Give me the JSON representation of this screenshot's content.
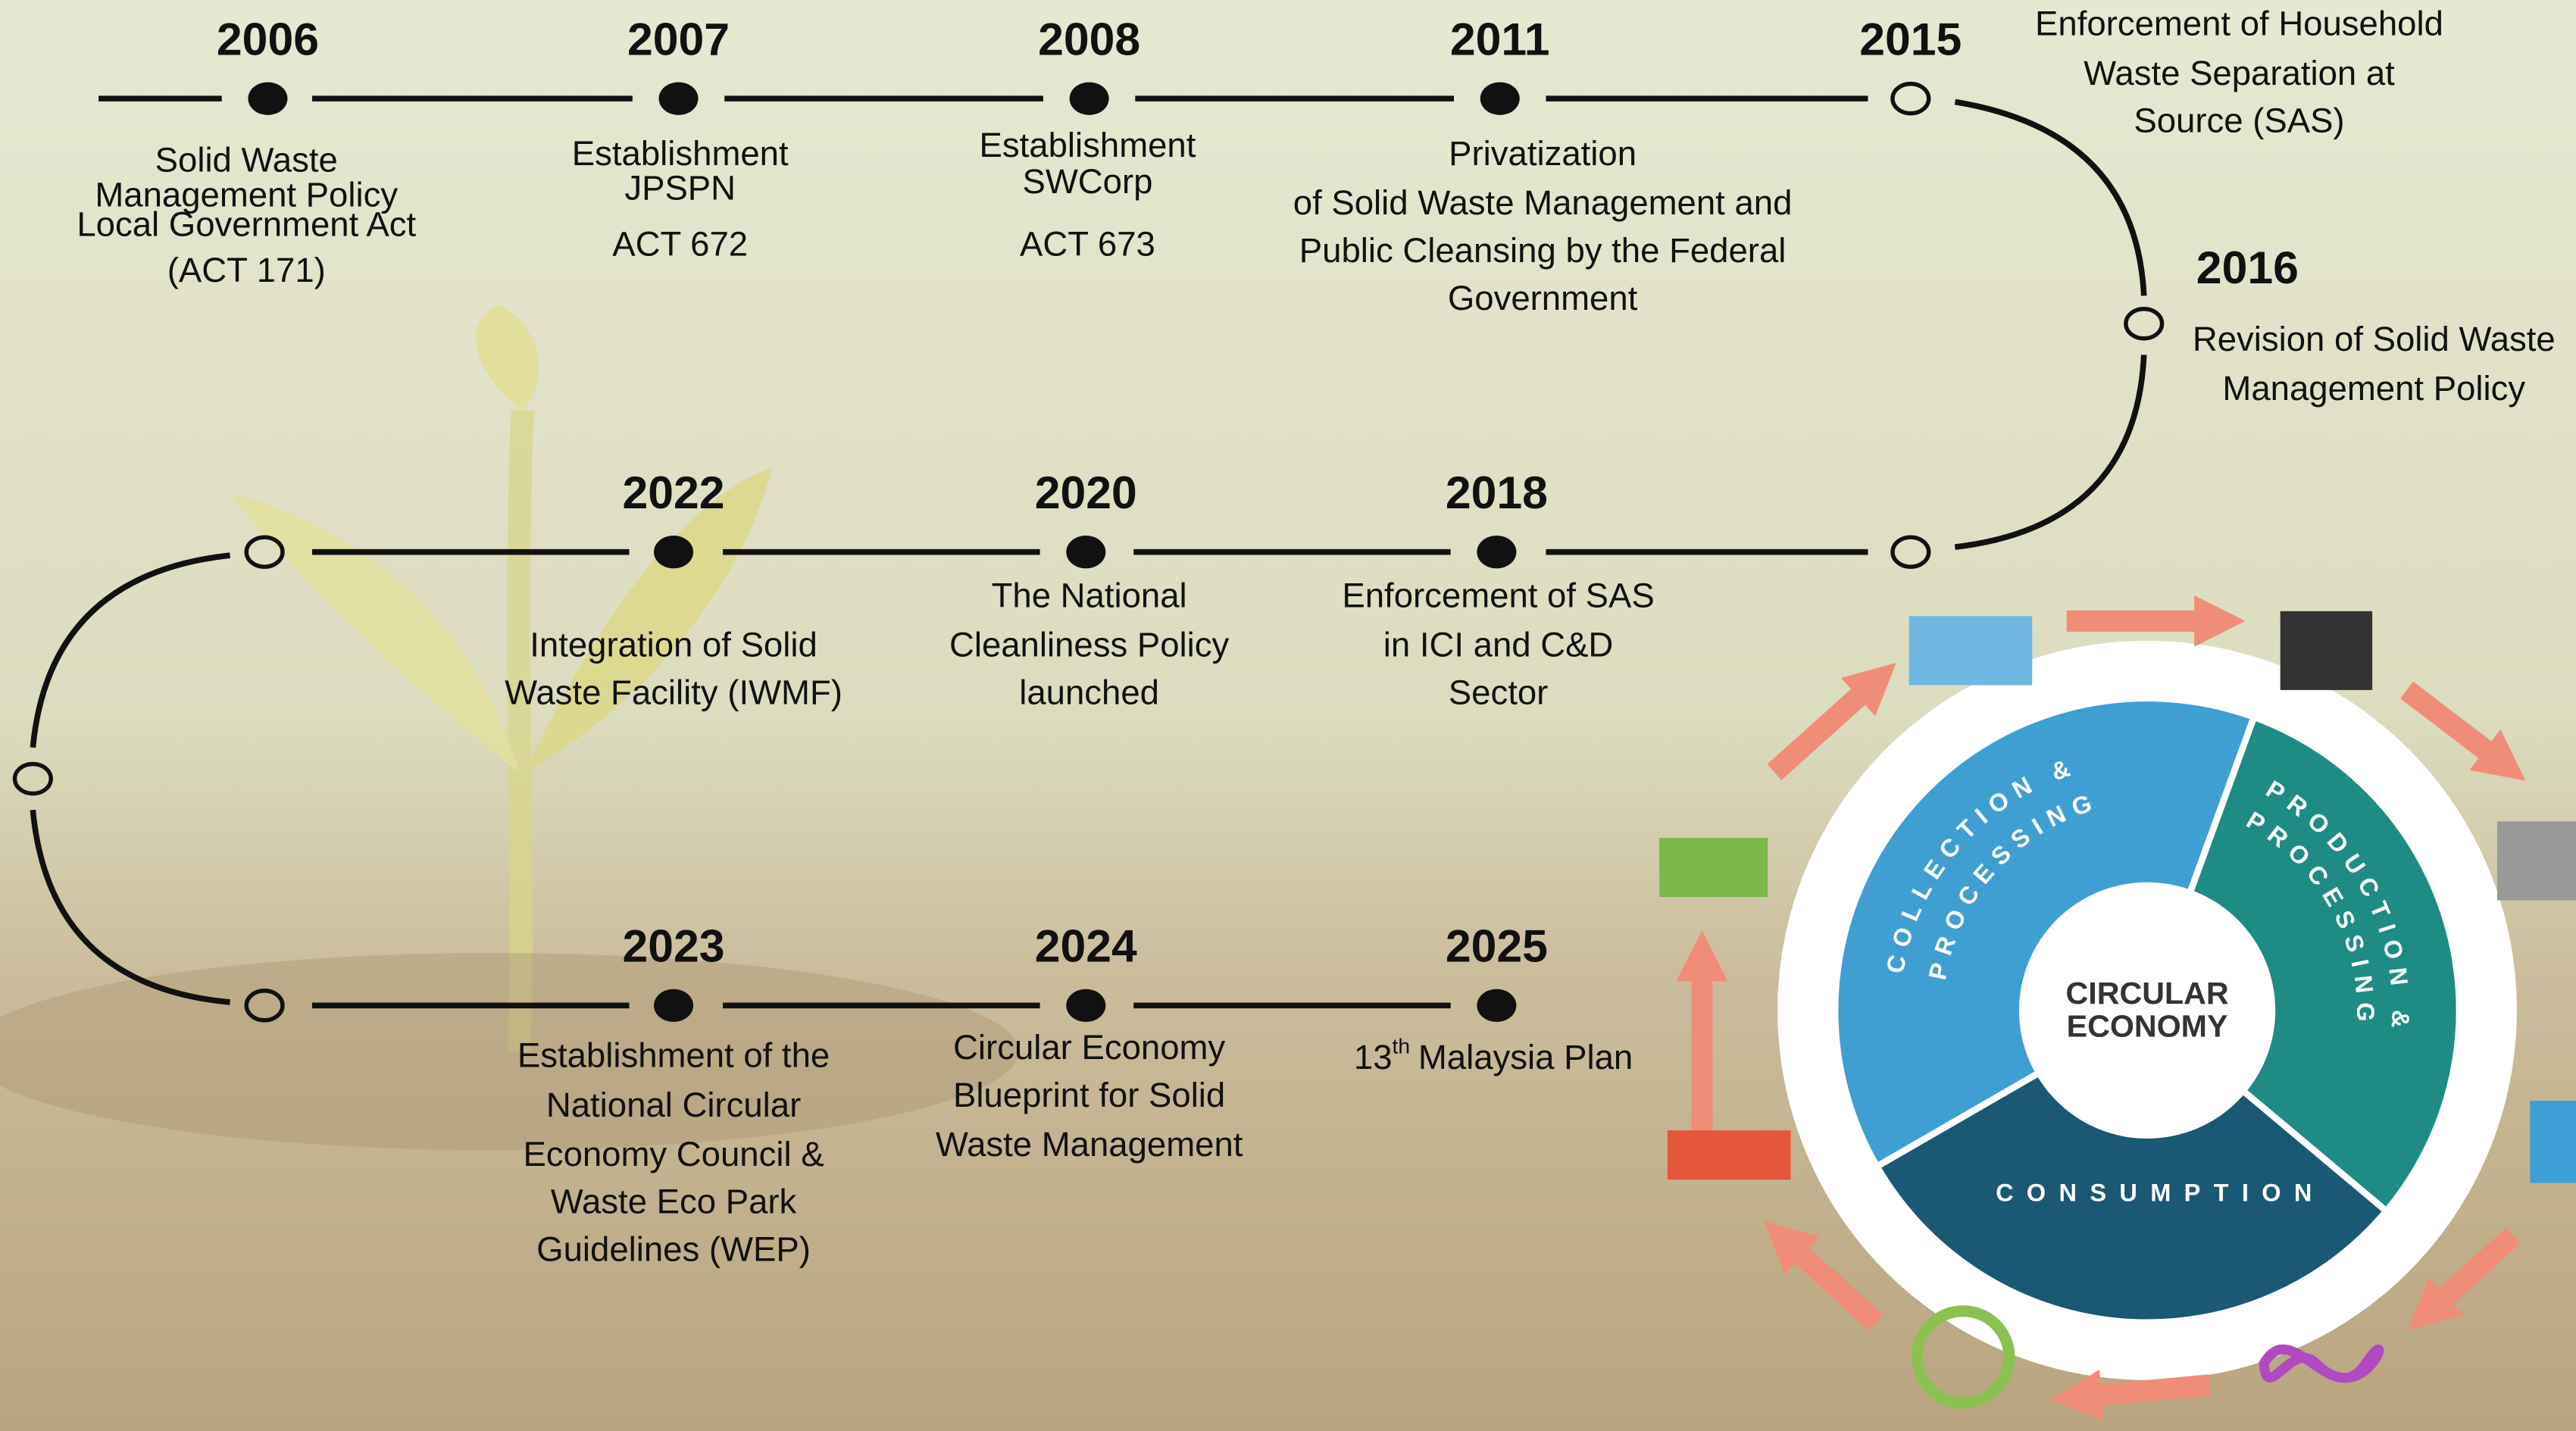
{
  "timeline": {
    "events": [
      {
        "year": "2006",
        "lines": [
          "Solid Waste",
          "Management Policy",
          "Local Government Act",
          "(ACT 171)"
        ]
      },
      {
        "year": "2007",
        "lines": [
          "Establishment",
          "JPSPN",
          "ACT 672"
        ]
      },
      {
        "year": "2008",
        "lines": [
          "Establishment",
          "SWCorp",
          "ACT 673"
        ]
      },
      {
        "year": "2011",
        "lines": [
          "Privatization",
          "of Solid Waste Management and",
          "Public Cleansing by the Federal",
          "Government"
        ]
      },
      {
        "year": "2015",
        "lines": [
          "Enforcement of Household",
          "Waste Separation at",
          "Source (SAS)"
        ]
      },
      {
        "year": "2016",
        "lines": [
          "Revision of Solid Waste",
          "Management Policy"
        ]
      },
      {
        "year": "2018",
        "lines": [
          "Enforcement of SAS",
          "in ICI and C&D",
          "Sector"
        ]
      },
      {
        "year": "2020",
        "lines": [
          "The National",
          "Cleanliness Policy",
          "launched"
        ]
      },
      {
        "year": "2022",
        "lines": [
          "Integration of Solid",
          "Waste Facility (IWMF)"
        ]
      },
      {
        "year": "2023",
        "lines": [
          "Establishment of the",
          "National Circular",
          "Economy Council &",
          "Waste Eco Park",
          "Guidelines (WEP)"
        ]
      },
      {
        "year": "2024",
        "lines": [
          "Circular Economy",
          "Blueprint for Solid",
          "Waste Management"
        ]
      },
      {
        "year": "2025",
        "note": {
          "number": "13",
          "superscript": "th",
          "text": "Malaysia Plan"
        }
      }
    ]
  },
  "circular_economy": {
    "center": [
      "CIRCULAR",
      "ECONOMY"
    ],
    "segments": [
      {
        "lines": [
          "COLLECTION &",
          "PROCESSING"
        ]
      },
      {
        "lines": [
          "PRODUCTION &",
          "PROCESSING"
        ]
      },
      {
        "lines": [
          "CONSUMPTION"
        ]
      }
    ]
  }
}
